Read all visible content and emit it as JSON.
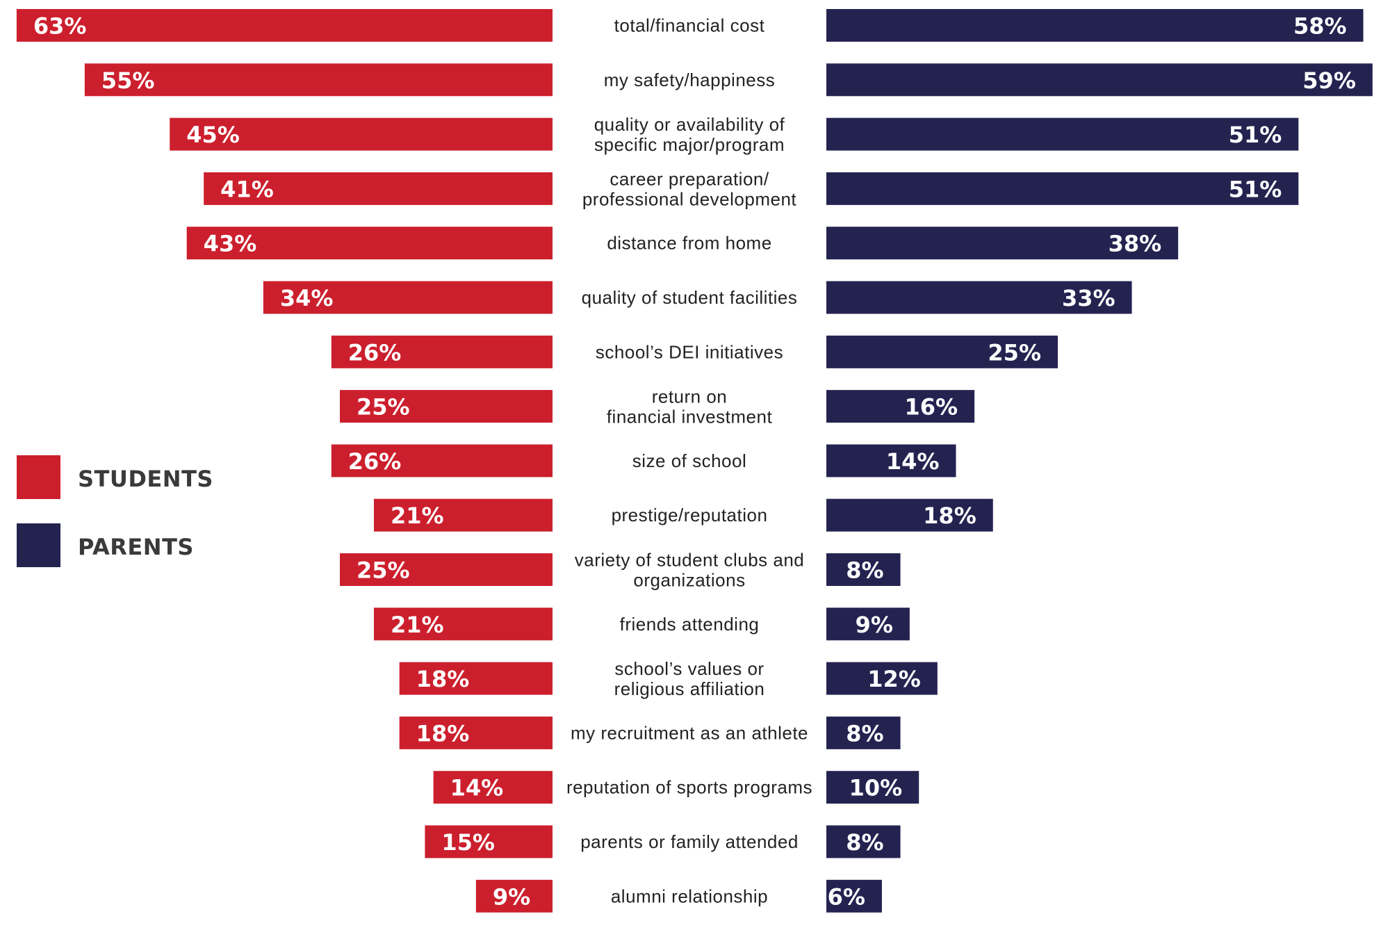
{
  "chart_data": {
    "type": "bar",
    "orientation": "horizontal-butterfly",
    "title": "",
    "xlabel": "",
    "ylabel": "",
    "unit": "%",
    "grid": false,
    "legend_position": "left",
    "categories": [
      [
        "total/financial cost"
      ],
      [
        "my safety/happiness"
      ],
      [
        "quality or availability of",
        "specific major/program"
      ],
      [
        "career preparation/",
        "professional development"
      ],
      [
        "distance from home"
      ],
      [
        "quality of student facilities"
      ],
      [
        "school’s DEI initiatives"
      ],
      [
        "return on",
        "financial investment"
      ],
      [
        "size of school"
      ],
      [
        "prestige/reputation"
      ],
      [
        "variety of student clubs and",
        "organizations"
      ],
      [
        "friends attending"
      ],
      [
        "school’s values or",
        "religious affiliation"
      ],
      [
        "my recruitment as an athlete"
      ],
      [
        "reputation of sports programs"
      ],
      [
        "parents or family attended"
      ],
      [
        "alumni relationship"
      ]
    ],
    "series": [
      {
        "name": "STUDENTS",
        "color": "#cc1f2d",
        "side": "left",
        "values": [
          63,
          55,
          45,
          41,
          43,
          34,
          26,
          25,
          26,
          21,
          25,
          21,
          18,
          18,
          14,
          15,
          9
        ]
      },
      {
        "name": "PARENTS",
        "color": "#242350",
        "side": "right",
        "values": [
          58,
          59,
          51,
          51,
          38,
          33,
          25,
          16,
          14,
          18,
          8,
          9,
          12,
          8,
          10,
          8,
          6
        ]
      }
    ],
    "xlim": [
      0,
      60
    ]
  },
  "legend": {
    "items": [
      {
        "label": "STUDENTS",
        "color": "#cc1f2d"
      },
      {
        "label": "PARENTS",
        "color": "#242350"
      }
    ]
  }
}
